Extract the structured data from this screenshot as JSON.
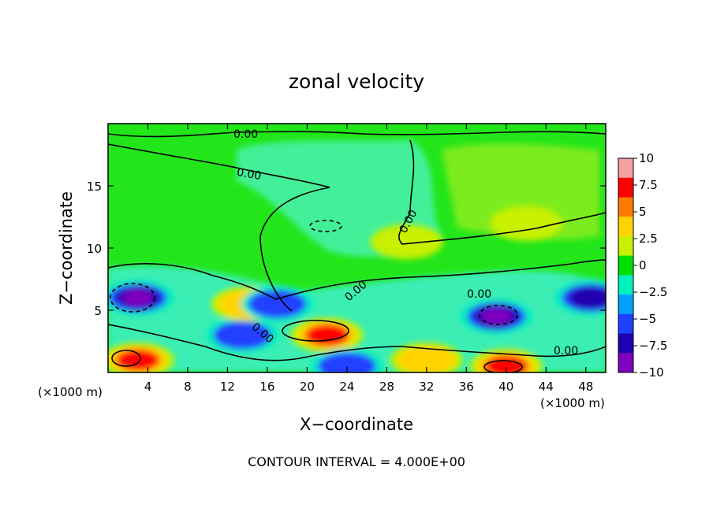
{
  "chart_data": {
    "type": "heatmap",
    "title": "zonal velocity",
    "xlabel": "X−coordinate",
    "ylabel": "Z−coordinate",
    "x_unit": "(×1000 m)",
    "xlim": [
      0,
      50
    ],
    "ylim": [
      0,
      20
    ],
    "x_ticks": [
      4,
      8,
      12,
      16,
      20,
      24,
      28,
      32,
      36,
      40,
      44,
      48
    ],
    "y_ticks": [
      5,
      10,
      15
    ],
    "colorbar": {
      "range": [
        -10,
        10
      ],
      "ticks": [
        10,
        7.5,
        5,
        2.5,
        0,
        -2.5,
        -5,
        -7.5,
        -10
      ],
      "tick_labels": [
        "10",
        "7.5",
        "5",
        "2.5",
        "0",
        "−2.5",
        "−5",
        "−7.5",
        "−10"
      ],
      "colors": [
        "#f4a0a0",
        "#ff0000",
        "#ff7a00",
        "#ffd200",
        "#c8f000",
        "#00e000",
        "#00f0c0",
        "#00a0ff",
        "#2040ff",
        "#2000b0",
        "#8000c0"
      ]
    },
    "contour_labels": [
      "0.00",
      "0.00",
      "0.00",
      "0.00",
      "0.00",
      "0.00",
      "0.00"
    ],
    "contour_interval_text": "CONTOUR INTERVAL =  4.000E+00",
    "features": [
      {
        "x": 3,
        "z": 6,
        "value": -9
      },
      {
        "x": 3,
        "z": 1,
        "value": 7
      },
      {
        "x": 22,
        "z": 3,
        "value": 8
      },
      {
        "x": 39,
        "z": 4.5,
        "value": -10
      },
      {
        "x": 40,
        "z": 0.5,
        "value": 8
      },
      {
        "x": 48.5,
        "z": 6,
        "value": -7
      },
      {
        "x": 13.5,
        "z": 3,
        "value": -6
      },
      {
        "x": 24,
        "z": 0.5,
        "value": -6
      },
      {
        "x": 14,
        "z": 5.5,
        "value": 4
      },
      {
        "x": 32,
        "z": 1,
        "value": 5
      },
      {
        "x": 30,
        "z": 10.5,
        "value": 1
      },
      {
        "x": 42,
        "z": 12,
        "value": 2
      },
      {
        "x": 17,
        "z": 5.5,
        "value": -5
      }
    ]
  }
}
